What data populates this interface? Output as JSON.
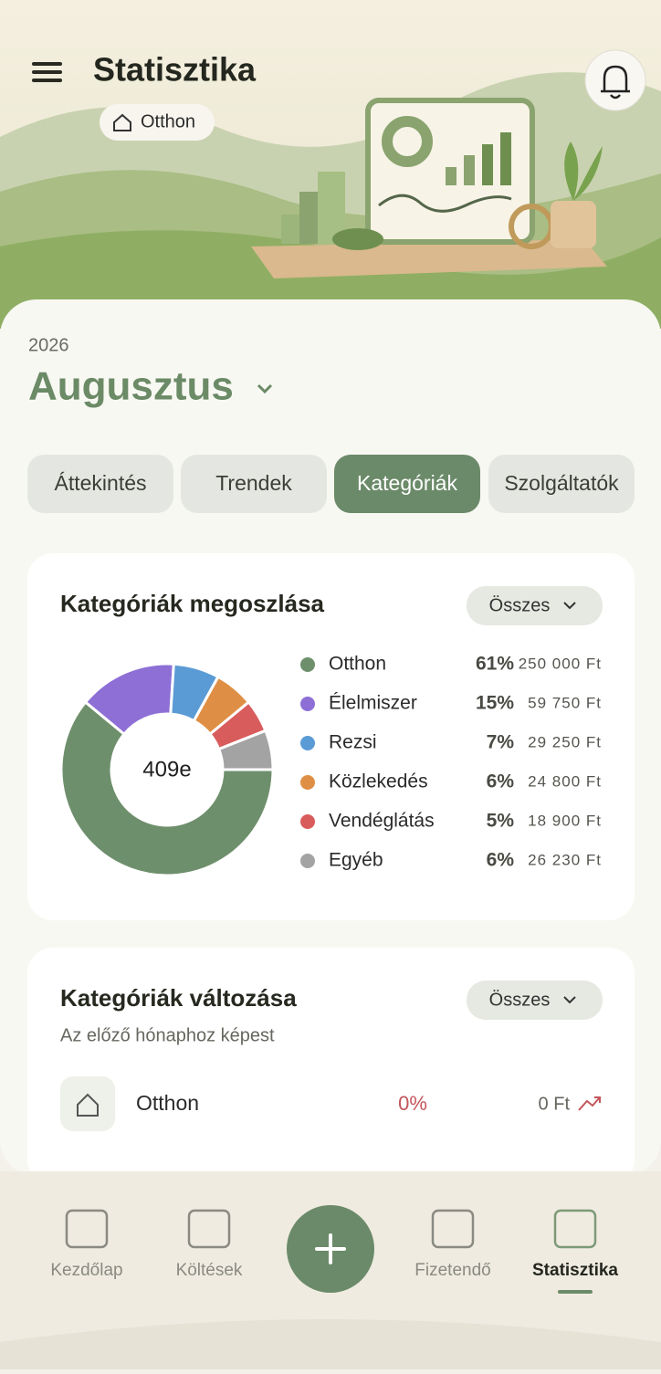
{
  "header": {
    "title": "Statisztika",
    "household": "Otthon"
  },
  "period": {
    "year": "2026",
    "month": "Augusztus"
  },
  "tabs": [
    {
      "label": "Áttekintés",
      "active": false
    },
    {
      "label": "Trendek",
      "active": false
    },
    {
      "label": "Kategóriák",
      "active": true
    },
    {
      "label": "Szolgáltatók",
      "active": false
    }
  ],
  "chart_data": {
    "type": "pie",
    "donut": true,
    "title": "Kategóriák megoszlása",
    "filter": "Összes",
    "center_label": "409e",
    "categories": [
      "Otthon",
      "Élelmiszer",
      "Rezsi",
      "Közlekedés",
      "Vendéglátás",
      "Egyéb"
    ],
    "values": [
      61,
      15,
      7,
      6,
      5,
      6
    ],
    "value_labels": [
      "61%",
      "15%",
      "7%",
      "6%",
      "5%",
      "6%"
    ],
    "amounts": [
      250000,
      59750,
      29250,
      24800,
      18900,
      26230
    ],
    "amount_labels": [
      "250 000 Ft",
      "59 750 Ft",
      "29 250 Ft",
      "24 800 Ft",
      "18 900 Ft",
      "26 230 Ft"
    ],
    "colors": [
      "#6e8f6c",
      "#8e6fd6",
      "#5b9bd5",
      "#df8f45",
      "#d95c5c",
      "#a3a3a3"
    ]
  },
  "changes": {
    "title": "Kategóriák változása",
    "filter": "Összes",
    "subtitle": "Az előző hónaphoz képest",
    "rows": [
      {
        "name": "Otthon",
        "change": "0%",
        "amount": "0 Ft"
      }
    ]
  },
  "nav": [
    {
      "label": "Kezdőlap",
      "active": false
    },
    {
      "label": "Költések",
      "active": false
    },
    {
      "label": "Fizetendő",
      "active": false
    },
    {
      "label": "Statisztika",
      "active": true
    }
  ]
}
